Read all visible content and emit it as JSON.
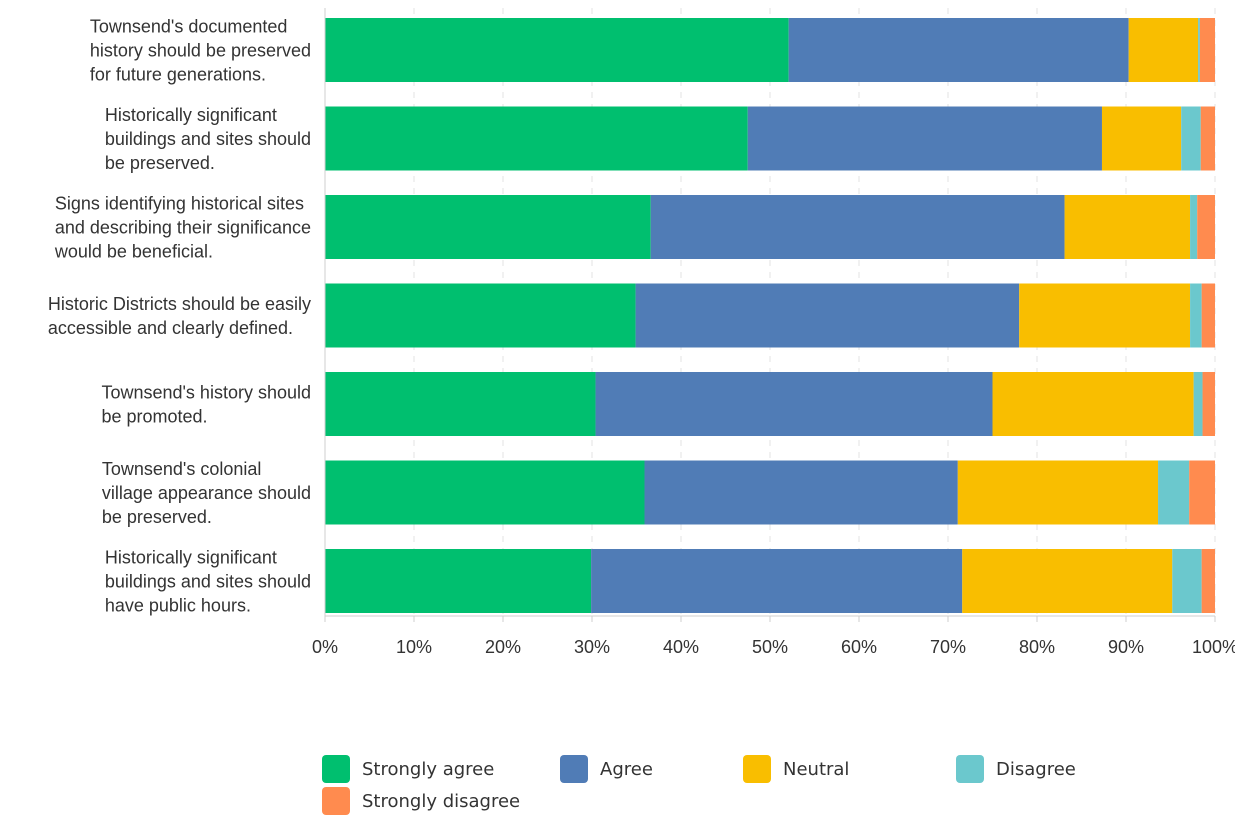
{
  "chart_data": {
    "type": "bar",
    "orientation": "horizontal",
    "stacked": true,
    "title": "",
    "xlabel": "",
    "ylabel": "",
    "xlim": [
      0,
      100
    ],
    "x_ticks": [
      "0%",
      "10%",
      "20%",
      "30%",
      "40%",
      "50%",
      "60%",
      "70%",
      "80%",
      "90%",
      "100%"
    ],
    "grid": true,
    "legend_position": "bottom",
    "categories": [
      "Townsend's documented history should be preserved for future generations.",
      "Historically significant buildings and sites should be preserved.",
      "Signs identifying historical sites and describing their significance would be beneficial.",
      "Historic Districts should be easily accessible and clearly defined.",
      "Townsend's history should be promoted.",
      "Townsend's colonial village appearance should be preserved.",
      "Historically significant buildings and sites should have public hours."
    ],
    "category_label_lines": [
      [
        "Townsend's documented",
        "history should be preserved",
        "for future generations."
      ],
      [
        "Historically significant",
        "buildings and sites should",
        "be preserved."
      ],
      [
        "Signs identifying historical sites",
        "and describing their significance",
        "would be beneficial."
      ],
      [
        "Historic Districts should be easily",
        "accessible and clearly defined."
      ],
      [
        "Townsend's history should",
        "be promoted."
      ],
      [
        "Townsend's colonial",
        "village appearance should",
        "be preserved."
      ],
      [
        "Historically significant",
        "buildings and sites should",
        "have public hours."
      ]
    ],
    "series": [
      {
        "name": "Strongly agree",
        "color": "#00bf6f",
        "values": [
          52.1,
          47.5,
          36.6,
          34.9,
          30.4,
          35.9,
          29.9
        ]
      },
      {
        "name": "Agree",
        "color": "#507cb6",
        "values": [
          38.2,
          39.8,
          46.5,
          43.1,
          44.6,
          35.2,
          41.7
        ]
      },
      {
        "name": "Neutral",
        "color": "#f9be00",
        "values": [
          7.8,
          8.9,
          14.1,
          19.2,
          22.6,
          22.5,
          23.6
        ]
      },
      {
        "name": "Disagree",
        "color": "#6bc8cd",
        "values": [
          0.2,
          2.2,
          0.8,
          1.3,
          1.0,
          3.5,
          3.3
        ]
      },
      {
        "name": "Strongly disagree",
        "color": "#ff8b4f",
        "values": [
          1.7,
          1.6,
          2.0,
          1.5,
          1.4,
          2.9,
          1.5
        ]
      }
    ]
  }
}
